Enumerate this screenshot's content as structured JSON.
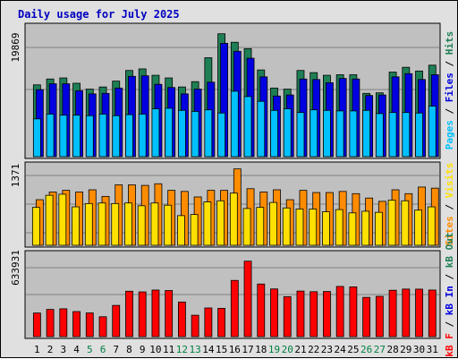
{
  "title": "Daily usage for July 2025",
  "colors": {
    "hits": "#1e7f55",
    "files": "#0000e0",
    "pages": "#00c0ff",
    "visits": "#ffe000",
    "sites": "#ff8c00",
    "kbytes": "#ff0000",
    "weekend_day": "#008040",
    "weekday": "#000000",
    "title": "#0000c0"
  },
  "chart_data": [
    {
      "type": "bar",
      "name": "hits-files-pages",
      "y_tick_label": "19869",
      "legend": [
        "Pages",
        "Files",
        "Hits"
      ],
      "x": [
        1,
        2,
        3,
        4,
        5,
        6,
        7,
        8,
        9,
        10,
        11,
        12,
        13,
        14,
        15,
        16,
        17,
        18,
        19,
        20,
        21,
        22,
        23,
        24,
        25,
        26,
        27,
        28,
        29,
        30,
        31
      ],
      "series": [
        {
          "name": "Hits",
          "values": [
            13500,
            14600,
            14800,
            13800,
            12700,
            13100,
            14200,
            16200,
            16500,
            15300,
            14800,
            13100,
            14100,
            18600,
            23100,
            21500,
            20300,
            16300,
            12900,
            12700,
            16200,
            15800,
            15300,
            15400,
            15400,
            11900,
            12000,
            15900,
            16800,
            16100,
            17200
          ]
        },
        {
          "name": "Files",
          "values": [
            12600,
            13700,
            13700,
            12400,
            11800,
            11900,
            12900,
            15100,
            15200,
            13600,
            13000,
            11800,
            12700,
            14000,
            21300,
            19800,
            18500,
            15000,
            11400,
            11600,
            14600,
            14500,
            13900,
            14700,
            14600,
            11500,
            11600,
            15000,
            15600,
            14500,
            15400
          ]
        },
        {
          "name": "Pages",
          "values": [
            7100,
            8000,
            7800,
            7800,
            7700,
            8000,
            7700,
            7900,
            8000,
            9000,
            9100,
            8700,
            8500,
            8800,
            8200,
            12300,
            11300,
            10400,
            8700,
            9000,
            8300,
            8800,
            8700,
            8600,
            8600,
            8700,
            8100,
            8300,
            8300,
            8200,
            9500
          ]
        }
      ]
    },
    {
      "type": "bar",
      "name": "visits-sites",
      "y_tick_label": "1371",
      "legend": [
        "Sites",
        "Visits"
      ],
      "x": [
        1,
        2,
        3,
        4,
        5,
        6,
        7,
        8,
        9,
        10,
        11,
        12,
        13,
        14,
        15,
        16,
        17,
        18,
        19,
        20,
        21,
        22,
        23,
        24,
        25,
        26,
        27,
        28,
        29,
        30,
        31
      ],
      "series": [
        {
          "name": "Sites",
          "values": [
            830,
            970,
            1000,
            970,
            1010,
            890,
            1100,
            1100,
            1090,
            1120,
            1000,
            980,
            880,
            1000,
            1000,
            1390,
            1030,
            970,
            1010,
            830,
            1000,
            960,
            960,
            980,
            940,
            860,
            800,
            1010,
            940,
            1060,
            1040
          ]
        },
        {
          "name": "Visits",
          "values": [
            690,
            910,
            930,
            700,
            760,
            770,
            760,
            770,
            720,
            770,
            730,
            540,
            560,
            790,
            810,
            950,
            670,
            690,
            780,
            680,
            660,
            660,
            610,
            650,
            590,
            620,
            600,
            820,
            810,
            640,
            700
          ]
        }
      ]
    },
    {
      "type": "bar",
      "name": "kbytes",
      "y_tick_label": "633931",
      "legend": [
        "kB F",
        "kB In",
        "kB Out"
      ],
      "x": [
        1,
        2,
        3,
        4,
        5,
        6,
        7,
        8,
        9,
        10,
        11,
        12,
        13,
        14,
        15,
        16,
        17,
        18,
        19,
        20,
        21,
        22,
        23,
        24,
        25,
        26,
        27,
        28,
        29,
        30,
        31
      ],
      "series": [
        {
          "name": "kB F",
          "values": [
            341000,
            393000,
            402000,
            362000,
            342000,
            287000,
            451000,
            656000,
            646000,
            673000,
            666000,
            500000,
            309000,
            414000,
            409000,
            812000,
            1090000,
            760000,
            689000,
            577000,
            658000,
            649000,
            652000,
            725000,
            719000,
            567000,
            582000,
            670000,
            687000,
            686000,
            673000
          ]
        }
      ]
    }
  ]
}
